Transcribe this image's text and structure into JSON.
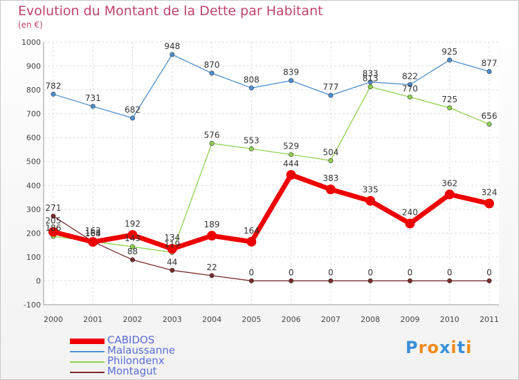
{
  "chart_data": {
    "type": "line",
    "title": "Evolution du Montant de la Dette par Habitant",
    "subtitle": "(en €)",
    "x": [
      "2000",
      "2001",
      "2002",
      "2003",
      "2004",
      "2005",
      "2006",
      "2007",
      "2008",
      "2009",
      "2010",
      "2011"
    ],
    "yticks": [
      "-100",
      "0",
      "100",
      "200",
      "300",
      "400",
      "500",
      "600",
      "700",
      "800",
      "900",
      "1000"
    ],
    "ylim": [
      -100,
      1000
    ],
    "grid": true,
    "legend_position": "bottom-left",
    "series": [
      {
        "name": "Malaussanne",
        "color": "#4d8fd1",
        "values": [
          782,
          731,
          682,
          948,
          870,
          808,
          839,
          777,
          833,
          822,
          925,
          877
        ]
      },
      {
        "name": "Philondenx",
        "color": "#8fd14d",
        "values": [
          186,
          165,
          143,
          119,
          576,
          553,
          529,
          504,
          813,
          770,
          725,
          656
        ]
      },
      {
        "name": "Montagut",
        "color": "#7a2a2a",
        "values": [
          271,
          164,
          88,
          44,
          22,
          0,
          0,
          0,
          0,
          0,
          0,
          0
        ]
      },
      {
        "name": "CABIDOS",
        "color": "#ee0000",
        "values": [
          205,
          163,
          192,
          134,
          189,
          164,
          444,
          383,
          335,
          240,
          362,
          324
        ]
      }
    ],
    "legend_order": [
      "CABIDOS",
      "Malaussanne",
      "Philondenx",
      "Montagut"
    ]
  },
  "logo": {
    "letters": [
      "P",
      "r",
      "o",
      "x",
      "i",
      "t",
      "i"
    ],
    "colors": [
      "#3a8fd9",
      "#f08a1c",
      "#f08a1c",
      "#3a8fd9",
      "#f08a1c",
      "#3a8fd9",
      "#f08a1c"
    ]
  }
}
